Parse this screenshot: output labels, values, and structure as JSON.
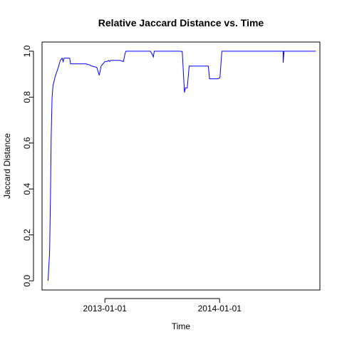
{
  "chart_data": {
    "type": "line",
    "title": "Relative Jaccard Distance vs. Time",
    "xlabel": "Time",
    "ylabel": "Jaccard Distance",
    "x_axis_type": "date",
    "xlim": [
      "2012-06-15",
      "2014-11-16"
    ],
    "ylim": [
      -0.04,
      1.04
    ],
    "x_ticks": [
      "2013-01-01",
      "2014-01-01"
    ],
    "y_ticks": [
      0.0,
      0.2,
      0.4,
      0.6,
      0.8,
      1.0
    ],
    "y_tick_labels": [
      "0.0",
      "0.2",
      "0.4",
      "0.6",
      "0.8",
      "1.0"
    ],
    "grid": false,
    "legend": "none",
    "line_color": "#0000ff",
    "series": [
      {
        "x": [
          "2012-07-04",
          "2012-07-09",
          "2012-07-12",
          "2012-07-14",
          "2012-07-17",
          "2012-07-20",
          "2012-07-27",
          "2012-08-06",
          "2012-08-12",
          "2012-08-18",
          "2012-08-21",
          "2012-08-24",
          "2012-09-11",
          "2012-09-14",
          "2012-09-17",
          "2012-10-01",
          "2012-10-21",
          "2012-11-01",
          "2012-11-14",
          "2012-11-20",
          "2012-12-06",
          "2012-12-14",
          "2012-12-20",
          "2013-01-01",
          "2013-01-04",
          "2013-01-07",
          "2013-01-13",
          "2013-01-16",
          "2013-01-19",
          "2013-01-27",
          "2013-02-18",
          "2013-03-01",
          "2013-03-06",
          "2013-03-09",
          "2013-03-12",
          "2013-03-21",
          "2013-04-08",
          "2013-04-18",
          "2013-05-26",
          "2013-06-01",
          "2013-06-04",
          "2013-06-07",
          "2013-06-10",
          "2013-06-19",
          "2013-07-11",
          "2013-07-25",
          "2013-08-22",
          "2013-09-04",
          "2013-09-08",
          "2013-09-11",
          "2013-09-14",
          "2013-09-20",
          "2013-09-26",
          "2013-10-02",
          "2013-10-27",
          "2013-11-20",
          "2013-11-24",
          "2013-11-26",
          "2013-11-30",
          "2013-12-02",
          "2013-12-27",
          "2014-01-02",
          "2014-01-05",
          "2014-01-08",
          "2014-01-21",
          "2014-07-01",
          "2014-07-22",
          "2014-07-22",
          "2014-07-25",
          "2014-07-28",
          "2014-08-15",
          "2014-11-03"
        ],
        "y": [
          0.0,
          0.12,
          0.38,
          0.62,
          0.8,
          0.85,
          0.89,
          0.93,
          0.96,
          0.97,
          0.955,
          0.97,
          0.97,
          0.945,
          0.945,
          0.945,
          0.945,
          0.945,
          0.94,
          0.935,
          0.93,
          0.895,
          0.935,
          0.955,
          0.955,
          0.955,
          0.96,
          0.955,
          0.96,
          0.96,
          0.96,
          0.955,
          0.99,
          1.0,
          1.0,
          1.0,
          1.0,
          1.0,
          1.0,
          0.985,
          0.975,
          1.0,
          1.0,
          1.0,
          1.0,
          1.0,
          1.0,
          0.999,
          0.9,
          0.82,
          0.84,
          0.84,
          0.935,
          0.935,
          0.935,
          0.935,
          0.935,
          0.935,
          0.88,
          0.88,
          0.88,
          0.885,
          0.94,
          1.0,
          1.0,
          1.0,
          1.0,
          0.95,
          1.0,
          1.0,
          1.0,
          1.0
        ]
      }
    ]
  }
}
